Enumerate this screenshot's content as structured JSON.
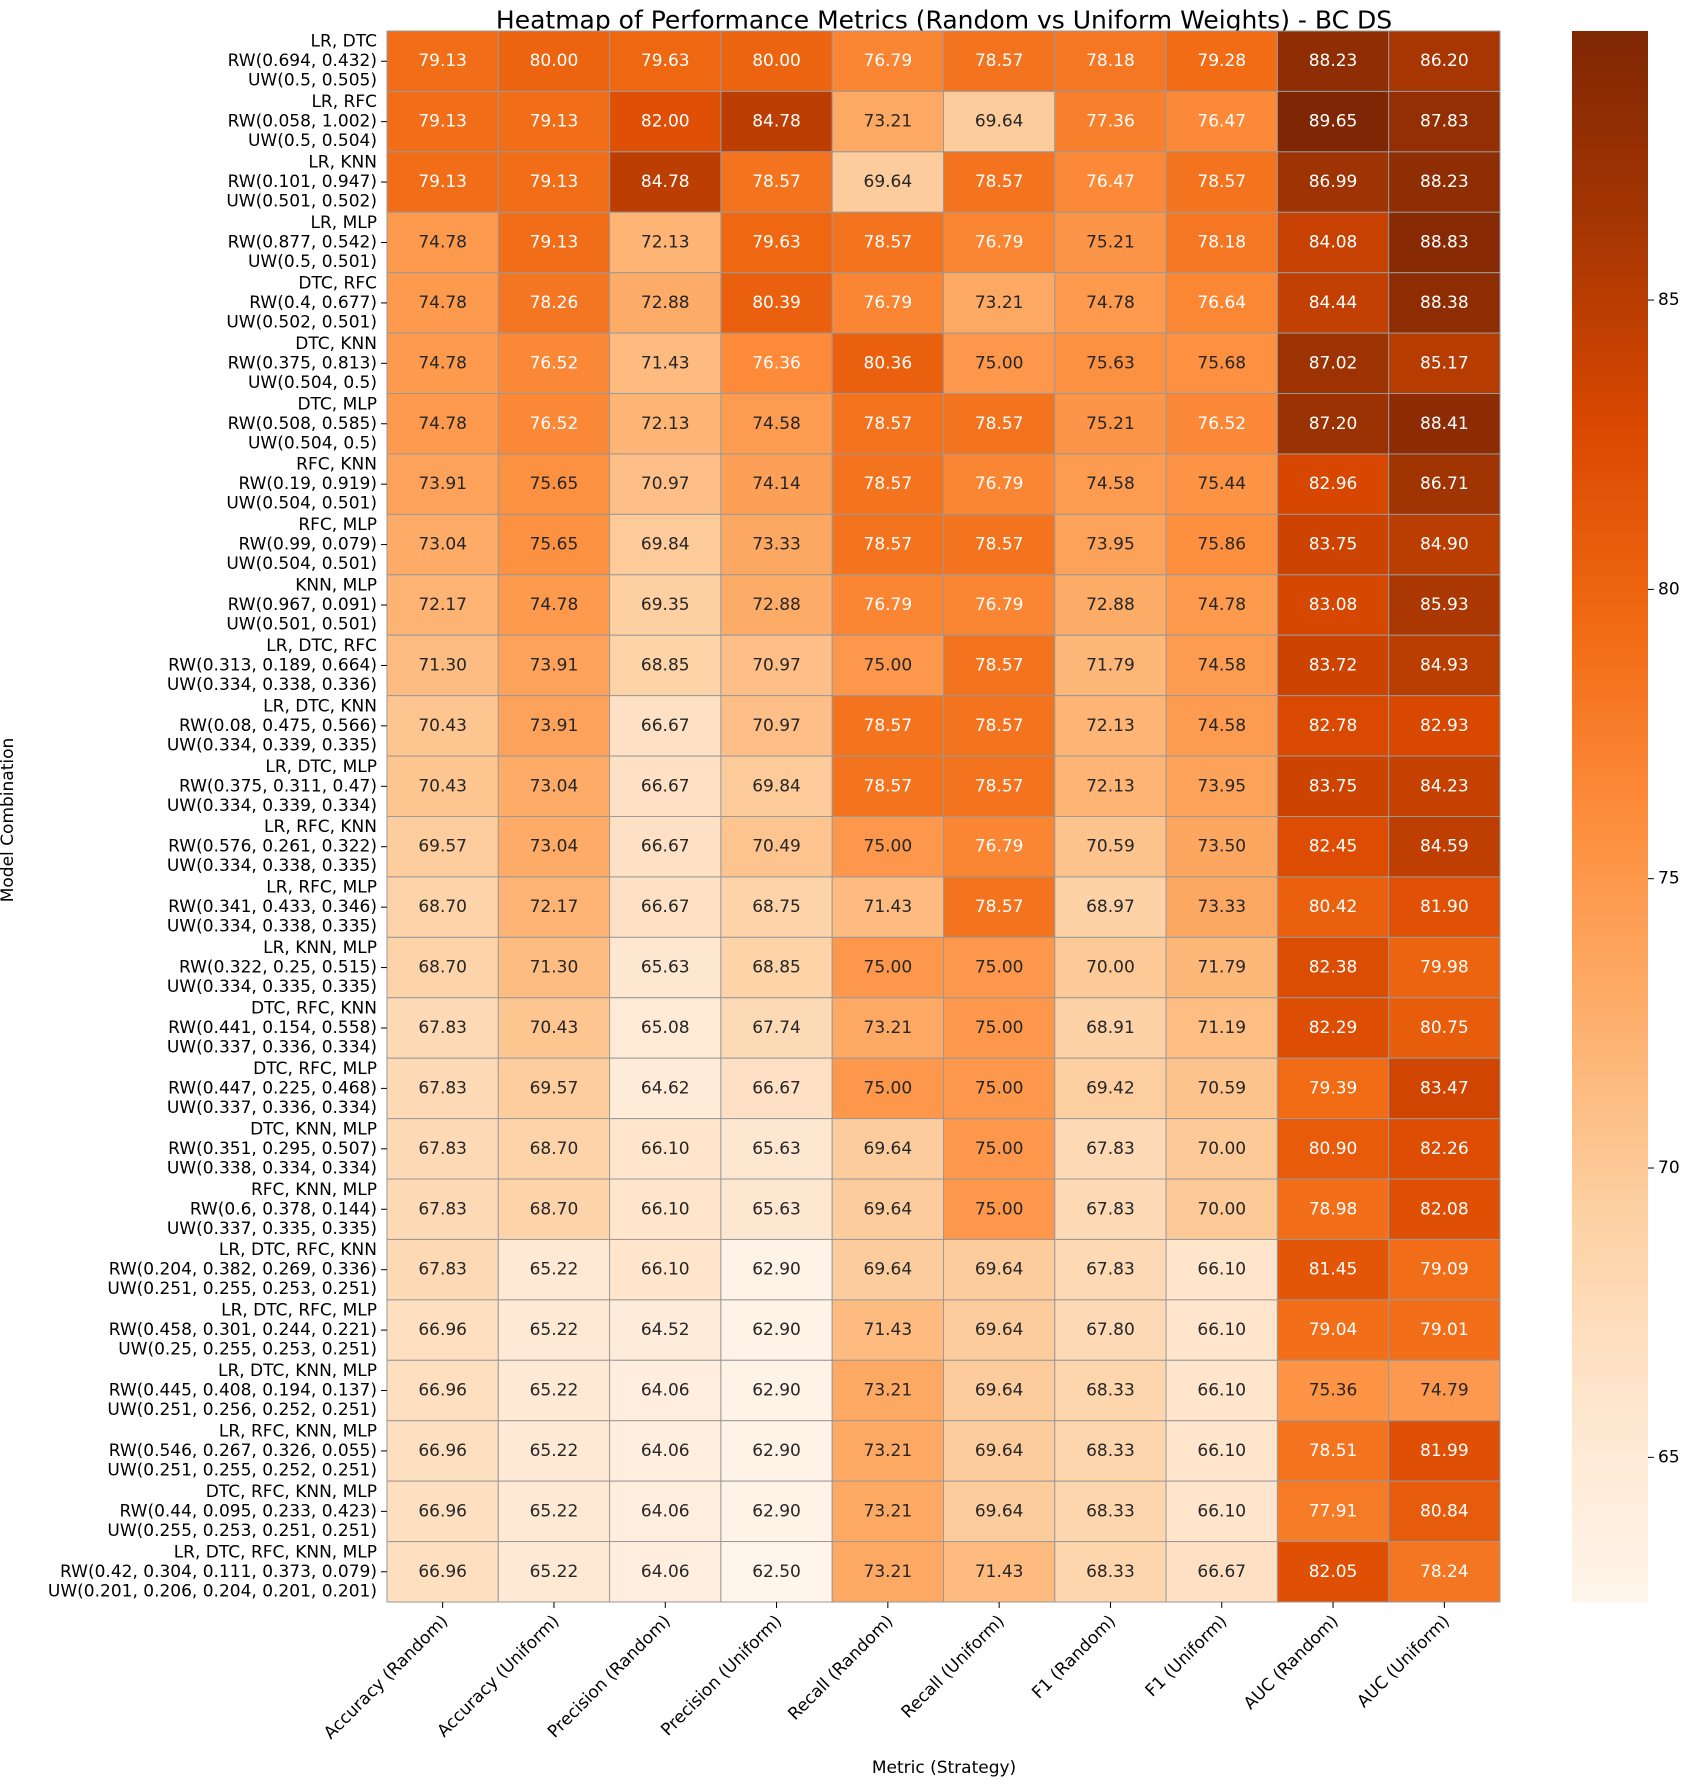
{
  "chart_data": {
    "type": "heatmap",
    "title": "Heatmap of Performance Metrics (Random vs Uniform Weights) - BC DS",
    "xlabel": "Metric (Strategy)",
    "ylabel": "Model Combination",
    "colormap": "Oranges",
    "colorbar": {
      "range": [
        62.5,
        89.65
      ],
      "ticks": [
        65,
        70,
        75,
        80,
        85
      ],
      "placement": "right"
    },
    "columns": [
      "Accuracy (Random)",
      "Accuracy (Uniform)",
      "Precision (Random)",
      "Precision (Uniform)",
      "Recall (Random)",
      "Recall (Uniform)",
      "F1 (Random)",
      "F1 (Uniform)",
      "AUC (Random)",
      "AUC (Uniform)"
    ],
    "rows": [
      {
        "label": [
          "LR, DTC",
          "RW(0.694, 0.432)",
          "UW(0.5, 0.505)"
        ],
        "values": [
          79.13,
          80.0,
          79.63,
          80.0,
          76.79,
          78.57,
          78.18,
          79.28,
          88.23,
          86.2
        ]
      },
      {
        "label": [
          "LR, RFC",
          "RW(0.058, 1.002)",
          "UW(0.5, 0.504)"
        ],
        "values": [
          79.13,
          79.13,
          82.0,
          84.78,
          73.21,
          69.64,
          77.36,
          76.47,
          89.65,
          87.83
        ]
      },
      {
        "label": [
          "LR, KNN",
          "RW(0.101, 0.947)",
          "UW(0.501, 0.502)"
        ],
        "values": [
          79.13,
          79.13,
          84.78,
          78.57,
          69.64,
          78.57,
          76.47,
          78.57,
          86.99,
          88.23
        ]
      },
      {
        "label": [
          "LR, MLP",
          "RW(0.877, 0.542)",
          "UW(0.5, 0.501)"
        ],
        "values": [
          74.78,
          79.13,
          72.13,
          79.63,
          78.57,
          76.79,
          75.21,
          78.18,
          84.08,
          88.83
        ]
      },
      {
        "label": [
          "DTC, RFC",
          "RW(0.4, 0.677)",
          "UW(0.502, 0.501)"
        ],
        "values": [
          74.78,
          78.26,
          72.88,
          80.39,
          76.79,
          73.21,
          74.78,
          76.64,
          84.44,
          88.38
        ]
      },
      {
        "label": [
          "DTC, KNN",
          "RW(0.375, 0.813)",
          "UW(0.504, 0.5)"
        ],
        "values": [
          74.78,
          76.52,
          71.43,
          76.36,
          80.36,
          75.0,
          75.63,
          75.68,
          87.02,
          85.17
        ]
      },
      {
        "label": [
          "DTC, MLP",
          "RW(0.508, 0.585)",
          "UW(0.504, 0.5)"
        ],
        "values": [
          74.78,
          76.52,
          72.13,
          74.58,
          78.57,
          78.57,
          75.21,
          76.52,
          87.2,
          88.41
        ]
      },
      {
        "label": [
          "RFC, KNN",
          "RW(0.19, 0.919)",
          "UW(0.504, 0.501)"
        ],
        "values": [
          73.91,
          75.65,
          70.97,
          74.14,
          78.57,
          76.79,
          74.58,
          75.44,
          82.96,
          86.71
        ]
      },
      {
        "label": [
          "RFC, MLP",
          "RW(0.99, 0.079)",
          "UW(0.504, 0.501)"
        ],
        "values": [
          73.04,
          75.65,
          69.84,
          73.33,
          78.57,
          78.57,
          73.95,
          75.86,
          83.75,
          84.9
        ]
      },
      {
        "label": [
          "KNN, MLP",
          "RW(0.967, 0.091)",
          "UW(0.501, 0.501)"
        ],
        "values": [
          72.17,
          74.78,
          69.35,
          72.88,
          76.79,
          76.79,
          72.88,
          74.78,
          83.08,
          85.93
        ]
      },
      {
        "label": [
          "LR, DTC, RFC",
          "RW(0.313, 0.189, 0.664)",
          "UW(0.334, 0.338, 0.336)"
        ],
        "values": [
          71.3,
          73.91,
          68.85,
          70.97,
          75.0,
          78.57,
          71.79,
          74.58,
          83.72,
          84.93
        ]
      },
      {
        "label": [
          "LR, DTC, KNN",
          "RW(0.08, 0.475, 0.566)",
          "UW(0.334, 0.339, 0.335)"
        ],
        "values": [
          70.43,
          73.91,
          66.67,
          70.97,
          78.57,
          78.57,
          72.13,
          74.58,
          82.78,
          82.93
        ]
      },
      {
        "label": [
          "LR, DTC, MLP",
          "RW(0.375, 0.311, 0.47)",
          "UW(0.334, 0.339, 0.334)"
        ],
        "values": [
          70.43,
          73.04,
          66.67,
          69.84,
          78.57,
          78.57,
          72.13,
          73.95,
          83.75,
          84.23
        ]
      },
      {
        "label": [
          "LR, RFC, KNN",
          "RW(0.576, 0.261, 0.322)",
          "UW(0.334, 0.338, 0.335)"
        ],
        "values": [
          69.57,
          73.04,
          66.67,
          70.49,
          75.0,
          76.79,
          70.59,
          73.5,
          82.45,
          84.59
        ]
      },
      {
        "label": [
          "LR, RFC, MLP",
          "RW(0.341, 0.433, 0.346)",
          "UW(0.334, 0.338, 0.335)"
        ],
        "values": [
          68.7,
          72.17,
          66.67,
          68.75,
          71.43,
          78.57,
          68.97,
          73.33,
          80.42,
          81.9
        ]
      },
      {
        "label": [
          "LR, KNN, MLP",
          "RW(0.322, 0.25, 0.515)",
          "UW(0.334, 0.335, 0.335)"
        ],
        "values": [
          68.7,
          71.3,
          65.63,
          68.85,
          75.0,
          75.0,
          70.0,
          71.79,
          82.38,
          79.98
        ]
      },
      {
        "label": [
          "DTC, RFC, KNN",
          "RW(0.441, 0.154, 0.558)",
          "UW(0.337, 0.336, 0.334)"
        ],
        "values": [
          67.83,
          70.43,
          65.08,
          67.74,
          73.21,
          75.0,
          68.91,
          71.19,
          82.29,
          80.75
        ]
      },
      {
        "label": [
          "DTC, RFC, MLP",
          "RW(0.447, 0.225, 0.468)",
          "UW(0.337, 0.336, 0.334)"
        ],
        "values": [
          67.83,
          69.57,
          64.62,
          66.67,
          75.0,
          75.0,
          69.42,
          70.59,
          79.39,
          83.47
        ]
      },
      {
        "label": [
          "DTC, KNN, MLP",
          "RW(0.351, 0.295, 0.507)",
          "UW(0.338, 0.334, 0.334)"
        ],
        "values": [
          67.83,
          68.7,
          66.1,
          65.63,
          69.64,
          75.0,
          67.83,
          70.0,
          80.9,
          82.26
        ]
      },
      {
        "label": [
          "RFC, KNN, MLP",
          "RW(0.6, 0.378, 0.144)",
          "UW(0.337, 0.335, 0.335)"
        ],
        "values": [
          67.83,
          68.7,
          66.1,
          65.63,
          69.64,
          75.0,
          67.83,
          70.0,
          78.98,
          82.08
        ]
      },
      {
        "label": [
          "LR, DTC, RFC, KNN",
          "RW(0.204, 0.382, 0.269, 0.336)",
          "UW(0.251, 0.255, 0.253, 0.251)"
        ],
        "values": [
          67.83,
          65.22,
          66.1,
          62.9,
          69.64,
          69.64,
          67.83,
          66.1,
          81.45,
          79.09
        ]
      },
      {
        "label": [
          "LR, DTC, RFC, MLP",
          "RW(0.458, 0.301, 0.244, 0.221)",
          "UW(0.25, 0.255, 0.253, 0.251)"
        ],
        "values": [
          66.96,
          65.22,
          64.52,
          62.9,
          71.43,
          69.64,
          67.8,
          66.1,
          79.04,
          79.01
        ]
      },
      {
        "label": [
          "LR, DTC, KNN, MLP",
          "RW(0.445, 0.408, 0.194, 0.137)",
          "UW(0.251, 0.256, 0.252, 0.251)"
        ],
        "values": [
          66.96,
          65.22,
          64.06,
          62.9,
          73.21,
          69.64,
          68.33,
          66.1,
          75.36,
          74.79
        ]
      },
      {
        "label": [
          "LR, RFC, KNN, MLP",
          "RW(0.546, 0.267, 0.326, 0.055)",
          "UW(0.251, 0.255, 0.252, 0.251)"
        ],
        "values": [
          66.96,
          65.22,
          64.06,
          62.9,
          73.21,
          69.64,
          68.33,
          66.1,
          78.51,
          81.99
        ]
      },
      {
        "label": [
          "DTC, RFC, KNN, MLP",
          "RW(0.44, 0.095, 0.233, 0.423)",
          "UW(0.255, 0.253, 0.251, 0.251)"
        ],
        "values": [
          66.96,
          65.22,
          64.06,
          62.9,
          73.21,
          69.64,
          68.33,
          66.1,
          77.91,
          80.84
        ]
      },
      {
        "label": [
          "LR, DTC, RFC, KNN, MLP",
          "RW(0.42, 0.304, 0.111, 0.373, 0.079)",
          "UW(0.201, 0.206, 0.204, 0.201, 0.201)"
        ],
        "values": [
          66.96,
          65.22,
          64.06,
          62.5,
          73.21,
          71.43,
          68.33,
          66.67,
          82.05,
          78.24
        ]
      }
    ]
  }
}
